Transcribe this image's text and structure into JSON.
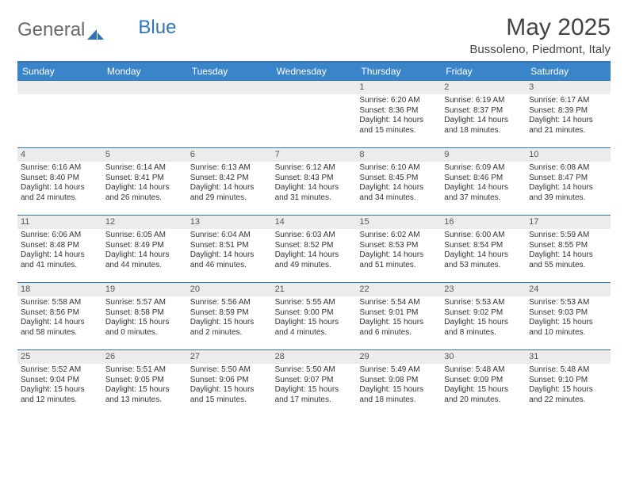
{
  "brand": {
    "name1": "General",
    "name2": "Blue"
  },
  "header": {
    "month_title": "May 2025",
    "location": "Bussoleno, Piedmont, Italy"
  },
  "colors": {
    "header_bg": "#3a85c9",
    "border": "#2f74b5",
    "daynum_bg": "#ececec",
    "text": "#333333"
  },
  "day_names": [
    "Sunday",
    "Monday",
    "Tuesday",
    "Wednesday",
    "Thursday",
    "Friday",
    "Saturday"
  ],
  "weeks": [
    [
      {
        "n": "",
        "sunrise": "",
        "sunset": "",
        "daylight": ""
      },
      {
        "n": "",
        "sunrise": "",
        "sunset": "",
        "daylight": ""
      },
      {
        "n": "",
        "sunrise": "",
        "sunset": "",
        "daylight": ""
      },
      {
        "n": "",
        "sunrise": "",
        "sunset": "",
        "daylight": ""
      },
      {
        "n": "1",
        "sunrise": "Sunrise: 6:20 AM",
        "sunset": "Sunset: 8:36 PM",
        "daylight": "Daylight: 14 hours and 15 minutes."
      },
      {
        "n": "2",
        "sunrise": "Sunrise: 6:19 AM",
        "sunset": "Sunset: 8:37 PM",
        "daylight": "Daylight: 14 hours and 18 minutes."
      },
      {
        "n": "3",
        "sunrise": "Sunrise: 6:17 AM",
        "sunset": "Sunset: 8:39 PM",
        "daylight": "Daylight: 14 hours and 21 minutes."
      }
    ],
    [
      {
        "n": "4",
        "sunrise": "Sunrise: 6:16 AM",
        "sunset": "Sunset: 8:40 PM",
        "daylight": "Daylight: 14 hours and 24 minutes."
      },
      {
        "n": "5",
        "sunrise": "Sunrise: 6:14 AM",
        "sunset": "Sunset: 8:41 PM",
        "daylight": "Daylight: 14 hours and 26 minutes."
      },
      {
        "n": "6",
        "sunrise": "Sunrise: 6:13 AM",
        "sunset": "Sunset: 8:42 PM",
        "daylight": "Daylight: 14 hours and 29 minutes."
      },
      {
        "n": "7",
        "sunrise": "Sunrise: 6:12 AM",
        "sunset": "Sunset: 8:43 PM",
        "daylight": "Daylight: 14 hours and 31 minutes."
      },
      {
        "n": "8",
        "sunrise": "Sunrise: 6:10 AM",
        "sunset": "Sunset: 8:45 PM",
        "daylight": "Daylight: 14 hours and 34 minutes."
      },
      {
        "n": "9",
        "sunrise": "Sunrise: 6:09 AM",
        "sunset": "Sunset: 8:46 PM",
        "daylight": "Daylight: 14 hours and 37 minutes."
      },
      {
        "n": "10",
        "sunrise": "Sunrise: 6:08 AM",
        "sunset": "Sunset: 8:47 PM",
        "daylight": "Daylight: 14 hours and 39 minutes."
      }
    ],
    [
      {
        "n": "11",
        "sunrise": "Sunrise: 6:06 AM",
        "sunset": "Sunset: 8:48 PM",
        "daylight": "Daylight: 14 hours and 41 minutes."
      },
      {
        "n": "12",
        "sunrise": "Sunrise: 6:05 AM",
        "sunset": "Sunset: 8:49 PM",
        "daylight": "Daylight: 14 hours and 44 minutes."
      },
      {
        "n": "13",
        "sunrise": "Sunrise: 6:04 AM",
        "sunset": "Sunset: 8:51 PM",
        "daylight": "Daylight: 14 hours and 46 minutes."
      },
      {
        "n": "14",
        "sunrise": "Sunrise: 6:03 AM",
        "sunset": "Sunset: 8:52 PM",
        "daylight": "Daylight: 14 hours and 49 minutes."
      },
      {
        "n": "15",
        "sunrise": "Sunrise: 6:02 AM",
        "sunset": "Sunset: 8:53 PM",
        "daylight": "Daylight: 14 hours and 51 minutes."
      },
      {
        "n": "16",
        "sunrise": "Sunrise: 6:00 AM",
        "sunset": "Sunset: 8:54 PM",
        "daylight": "Daylight: 14 hours and 53 minutes."
      },
      {
        "n": "17",
        "sunrise": "Sunrise: 5:59 AM",
        "sunset": "Sunset: 8:55 PM",
        "daylight": "Daylight: 14 hours and 55 minutes."
      }
    ],
    [
      {
        "n": "18",
        "sunrise": "Sunrise: 5:58 AM",
        "sunset": "Sunset: 8:56 PM",
        "daylight": "Daylight: 14 hours and 58 minutes."
      },
      {
        "n": "19",
        "sunrise": "Sunrise: 5:57 AM",
        "sunset": "Sunset: 8:58 PM",
        "daylight": "Daylight: 15 hours and 0 minutes."
      },
      {
        "n": "20",
        "sunrise": "Sunrise: 5:56 AM",
        "sunset": "Sunset: 8:59 PM",
        "daylight": "Daylight: 15 hours and 2 minutes."
      },
      {
        "n": "21",
        "sunrise": "Sunrise: 5:55 AM",
        "sunset": "Sunset: 9:00 PM",
        "daylight": "Daylight: 15 hours and 4 minutes."
      },
      {
        "n": "22",
        "sunrise": "Sunrise: 5:54 AM",
        "sunset": "Sunset: 9:01 PM",
        "daylight": "Daylight: 15 hours and 6 minutes."
      },
      {
        "n": "23",
        "sunrise": "Sunrise: 5:53 AM",
        "sunset": "Sunset: 9:02 PM",
        "daylight": "Daylight: 15 hours and 8 minutes."
      },
      {
        "n": "24",
        "sunrise": "Sunrise: 5:53 AM",
        "sunset": "Sunset: 9:03 PM",
        "daylight": "Daylight: 15 hours and 10 minutes."
      }
    ],
    [
      {
        "n": "25",
        "sunrise": "Sunrise: 5:52 AM",
        "sunset": "Sunset: 9:04 PM",
        "daylight": "Daylight: 15 hours and 12 minutes."
      },
      {
        "n": "26",
        "sunrise": "Sunrise: 5:51 AM",
        "sunset": "Sunset: 9:05 PM",
        "daylight": "Daylight: 15 hours and 13 minutes."
      },
      {
        "n": "27",
        "sunrise": "Sunrise: 5:50 AM",
        "sunset": "Sunset: 9:06 PM",
        "daylight": "Daylight: 15 hours and 15 minutes."
      },
      {
        "n": "28",
        "sunrise": "Sunrise: 5:50 AM",
        "sunset": "Sunset: 9:07 PM",
        "daylight": "Daylight: 15 hours and 17 minutes."
      },
      {
        "n": "29",
        "sunrise": "Sunrise: 5:49 AM",
        "sunset": "Sunset: 9:08 PM",
        "daylight": "Daylight: 15 hours and 18 minutes."
      },
      {
        "n": "30",
        "sunrise": "Sunrise: 5:48 AM",
        "sunset": "Sunset: 9:09 PM",
        "daylight": "Daylight: 15 hours and 20 minutes."
      },
      {
        "n": "31",
        "sunrise": "Sunrise: 5:48 AM",
        "sunset": "Sunset: 9:10 PM",
        "daylight": "Daylight: 15 hours and 22 minutes."
      }
    ]
  ]
}
